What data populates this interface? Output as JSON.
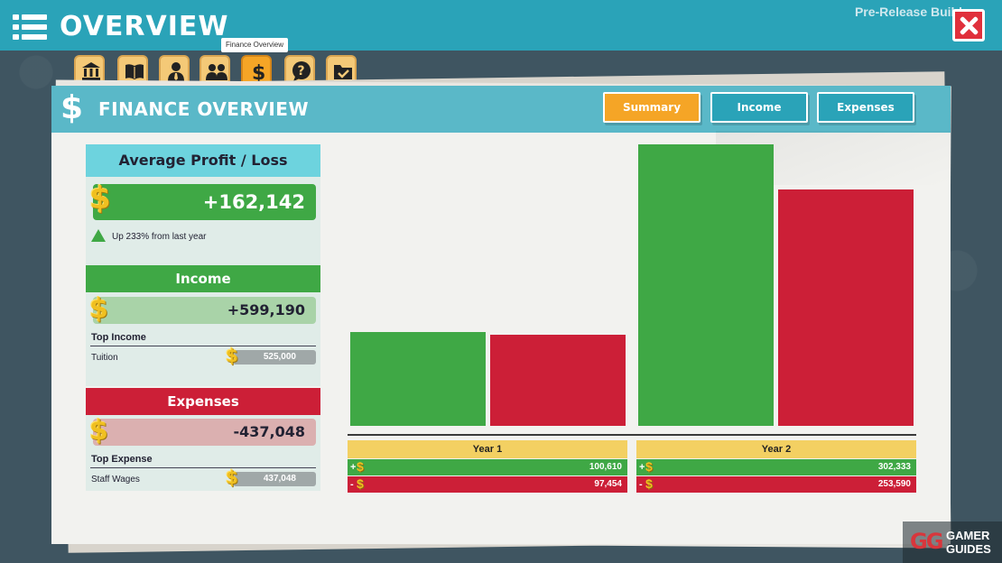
{
  "header": {
    "title": "OVERVIEW",
    "build_label": "Pre-Release Build"
  },
  "tooltip": "Finance Overview",
  "category_tabs": [
    {
      "icon": "bank-icon"
    },
    {
      "icon": "book-icon"
    },
    {
      "icon": "person-tie-icon"
    },
    {
      "icon": "people-group-icon"
    },
    {
      "icon": "dollar-icon",
      "active": true
    },
    {
      "icon": "question-bubble-icon"
    },
    {
      "icon": "folder-check-icon"
    }
  ],
  "panel": {
    "title": "FINANCE OVERVIEW",
    "tabs": [
      {
        "label": "Summary",
        "active": true
      },
      {
        "label": "Income",
        "active": false
      },
      {
        "label": "Expenses",
        "active": false
      }
    ]
  },
  "profit": {
    "header": "Average Profit / Loss",
    "value": "+162,142",
    "trend": "Up 233% from last year"
  },
  "income": {
    "header": "Income",
    "value": "+599,190",
    "top_label": "Top Income",
    "top_item": "Tuition",
    "top_value": "525,000"
  },
  "expenses": {
    "header": "Expenses",
    "value": "-437,048",
    "top_label": "Top Expense",
    "top_item": "Staff Wages",
    "top_value": "437,048"
  },
  "colors": {
    "income_green": "#3fa845",
    "expense_red": "#cc1f37",
    "accent_teal": "#2aa3b8",
    "active_orange": "#f5a526"
  },
  "chart_data": {
    "type": "bar",
    "categories": [
      "Year 1",
      "Year 2"
    ],
    "series": [
      {
        "sign": "+",
        "values": [
          100610,
          302333
        ]
      },
      {
        "sign": "-",
        "values": [
          97454,
          253590
        ]
      }
    ],
    "value_labels": {
      "Year 1": {
        "plus": "100,610",
        "minus": "97,454"
      },
      "Year 2": {
        "plus": "302,333",
        "minus": "253,590"
      }
    }
  },
  "watermark": {
    "line1": "GAMER",
    "line2": "GUIDES"
  }
}
